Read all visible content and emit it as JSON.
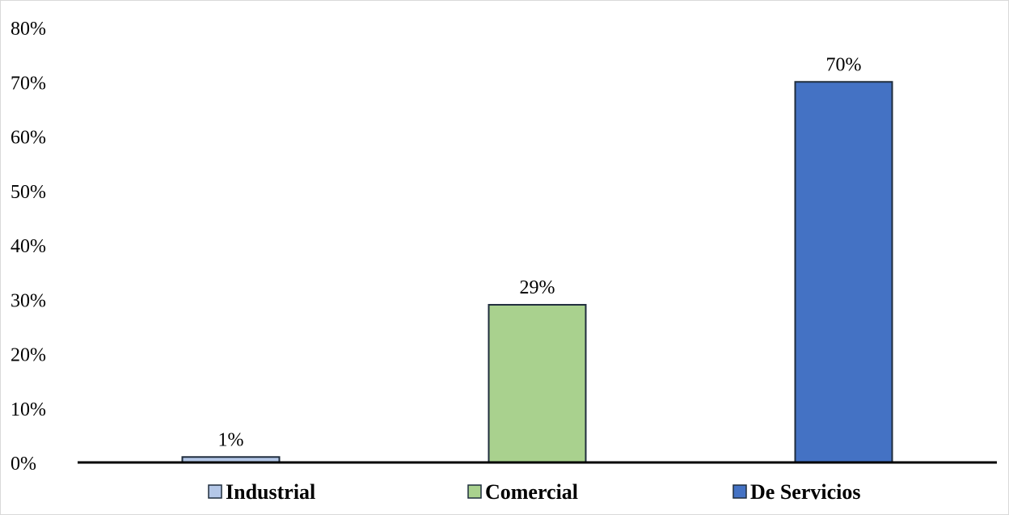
{
  "chart_data": {
    "type": "bar",
    "title": "",
    "xlabel": "",
    "ylabel": "",
    "categories": [
      "Industrial",
      "Comercial",
      "De Servicios"
    ],
    "values": [
      1,
      29,
      70
    ],
    "data_labels": [
      "1%",
      "29%",
      "70%"
    ],
    "colors": [
      "#b4c7e7",
      "#a9d18e",
      "#4472c4"
    ],
    "ylim": [
      0,
      80
    ],
    "yticks": [
      0,
      10,
      20,
      30,
      40,
      50,
      60,
      70,
      80
    ],
    "ytick_labels": [
      "0%",
      "10%",
      "20%",
      "30%",
      "40%",
      "50%",
      "60%",
      "70%",
      "80%"
    ],
    "grid": false,
    "legend": {
      "placement": "bottom",
      "entries": [
        "Industrial",
        "Comercial",
        "De Servicios"
      ]
    }
  }
}
